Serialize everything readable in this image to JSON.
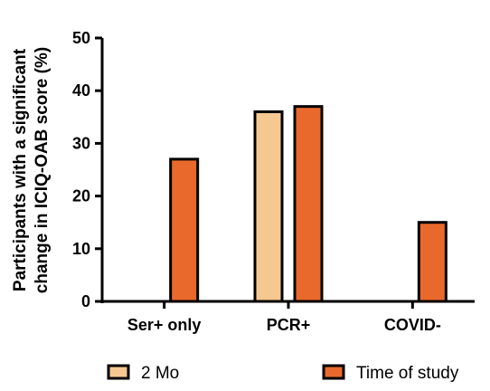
{
  "chart_data": {
    "type": "bar",
    "categories": [
      "Ser+ only",
      "PCR+",
      "COVID-"
    ],
    "series": [
      {
        "name": "2 Mo",
        "values": [
          0,
          36,
          0
        ],
        "color": "#f6c891"
      },
      {
        "name": "Time of study",
        "values": [
          27,
          37,
          15
        ],
        "color": "#e9692c"
      }
    ],
    "ylabel_lines": [
      "Participants with a significant",
      "change in ICIQ-OAB score (%)"
    ],
    "ylim": [
      0,
      50
    ],
    "yticks": [
      0,
      10,
      20,
      30,
      40,
      50
    ],
    "grid": false,
    "legend_position": "bottom"
  }
}
